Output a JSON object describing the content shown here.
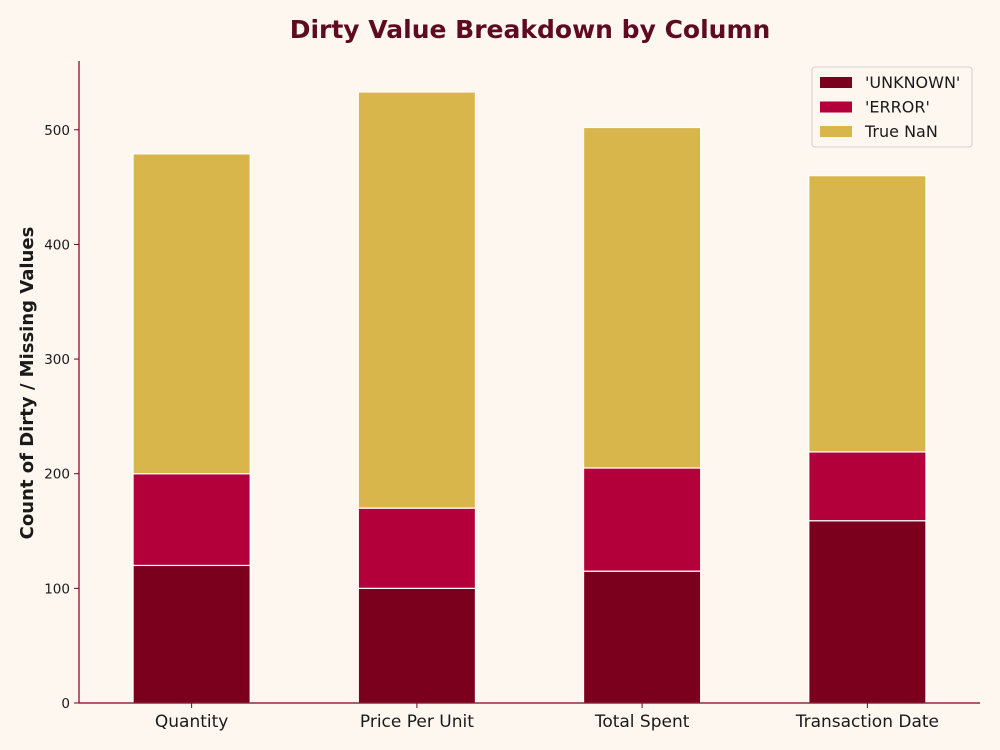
{
  "chart_data": {
    "type": "bar",
    "stacked": true,
    "title": "Dirty Value Breakdown by Column",
    "xlabel": "",
    "ylabel": "Count of Dirty / Missing Values",
    "categories": [
      "Quantity",
      "Price Per Unit",
      "Total Spent",
      "Transaction Date"
    ],
    "series": [
      {
        "name": "'UNKNOWN'",
        "color": "#7b001e",
        "values": [
          120,
          100,
          115,
          159
        ]
      },
      {
        "name": "'ERROR'",
        "color": "#b4003a",
        "values": [
          80,
          70,
          90,
          60
        ]
      },
      {
        "name": "True NaN",
        "color": "#d9b64c",
        "values": [
          279,
          363,
          297,
          241
        ]
      }
    ],
    "ylim": [
      0,
      560
    ],
    "yticks": [
      0,
      100,
      200,
      300,
      400,
      500
    ],
    "grid": false,
    "legend_position": "top-right",
    "axis_color": "#7b001e",
    "background": "#fdf7f0"
  }
}
